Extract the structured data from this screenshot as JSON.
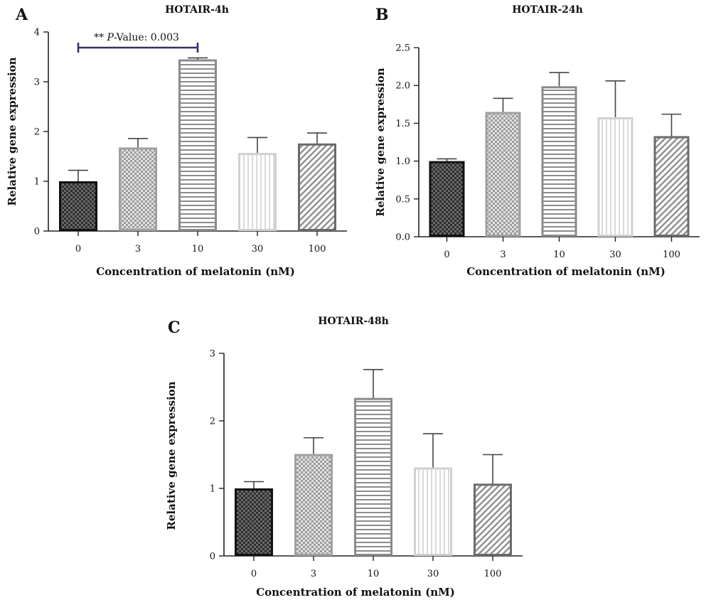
{
  "colors": {
    "axis": "#222222",
    "error": "#444444",
    "significance": "#3b2a6e",
    "bars": [
      {
        "fill": "#555555",
        "stroke": "#111111",
        "pattern": "checker-dark"
      },
      {
        "fill": "#a8a8a8",
        "stroke": "#a0a0a0",
        "pattern": "checker-light"
      },
      {
        "fill": "#9a9a9a",
        "stroke": "#8a8a8a",
        "pattern": "hlines"
      },
      {
        "fill": "#d6d6d6",
        "stroke": "#d0d0d0",
        "pattern": "vlines"
      },
      {
        "fill": "#9a9a9a",
        "stroke": "#6a6a6a",
        "pattern": "diag"
      }
    ]
  },
  "chart_data": [
    {
      "type": "bar",
      "panel": "A",
      "title": "HOTAIR-4h",
      "xlabel": "Concentration of melatonin (nM)",
      "ylabel": "Relative gene expression",
      "categories": [
        "0",
        "3",
        "10",
        "30",
        "100"
      ],
      "values": [
        1.0,
        1.68,
        3.45,
        1.57,
        1.76
      ],
      "errors": [
        0.22,
        0.18,
        0.03,
        0.31,
        0.21
      ],
      "ylim": [
        0,
        4
      ],
      "yticks": [
        "0",
        "1",
        "2",
        "3",
        "4"
      ],
      "annotation": {
        "stars": "**",
        "p_italic": "P",
        "text": "-Value: 0.003",
        "from": "0",
        "to": "10"
      }
    },
    {
      "type": "bar",
      "panel": "B",
      "title": "HOTAIR-24h",
      "xlabel": "Concentration of melatonin (nM)",
      "ylabel": "Relative gene expression",
      "categories": [
        "0",
        "3",
        "10",
        "30",
        "100"
      ],
      "values": [
        1.0,
        1.65,
        1.99,
        1.58,
        1.33
      ],
      "errors": [
        0.03,
        0.18,
        0.18,
        0.48,
        0.29
      ],
      "ylim": [
        0,
        2.5
      ],
      "yticks": [
        "0.0",
        "0.5",
        "1.0",
        "1.5",
        "2.0",
        "2.5"
      ]
    },
    {
      "type": "bar",
      "panel": "C",
      "title": "HOTAIR-48h",
      "xlabel": "Concentration of melatonin (nM)",
      "ylabel": "Relative gene expression",
      "categories": [
        "0",
        "3",
        "10",
        "30",
        "100"
      ],
      "values": [
        1.0,
        1.51,
        2.34,
        1.31,
        1.07
      ],
      "errors": [
        0.1,
        0.24,
        0.42,
        0.5,
        0.43
      ],
      "ylim": [
        0,
        3
      ],
      "yticks": [
        "0",
        "1",
        "2",
        "3"
      ]
    }
  ]
}
